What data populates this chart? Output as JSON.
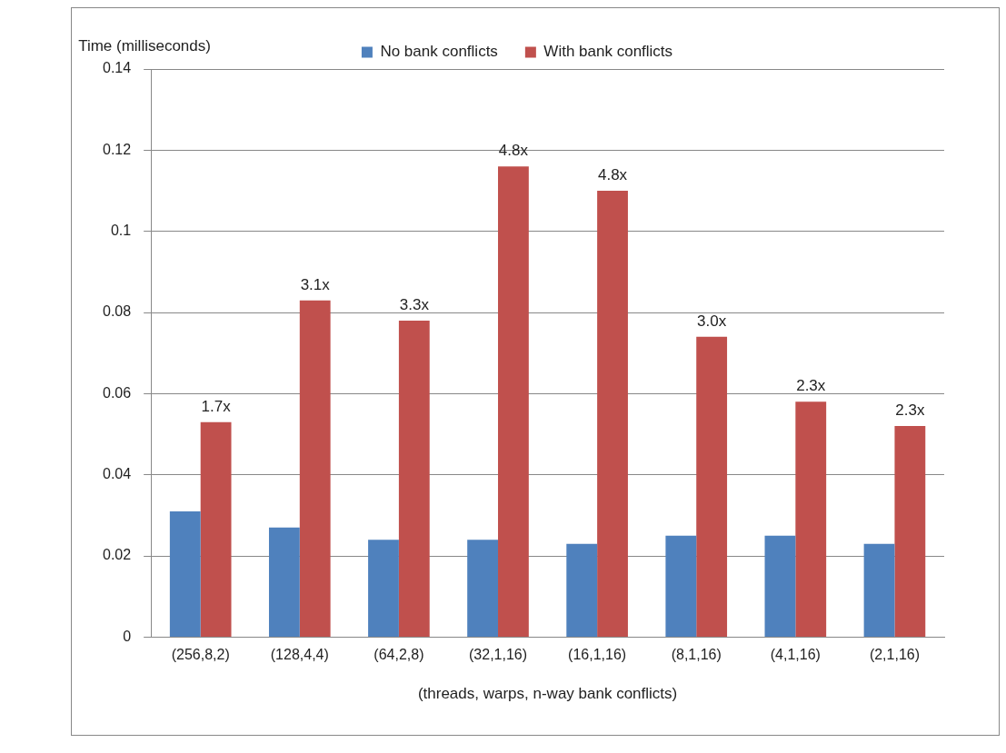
{
  "chart_data": {
    "type": "bar",
    "categories": [
      "(256,8,2)",
      "(128,4,4)",
      "(64,2,8)",
      "(32,1,16)",
      "(16,1,16)",
      "(8,1,16)",
      "(4,1,16)",
      "(2,1,16)"
    ],
    "series": [
      {
        "name": "No bank conflicts",
        "color": "#4f81bd",
        "values": [
          0.031,
          0.027,
          0.024,
          0.024,
          0.023,
          0.025,
          0.025,
          0.023
        ]
      },
      {
        "name": "With bank conflicts",
        "color": "#c0504d",
        "values": [
          0.053,
          0.083,
          0.078,
          0.116,
          0.11,
          0.074,
          0.058,
          0.052
        ]
      }
    ],
    "xlabel": "(threads, warps, n-way bank conflicts)",
    "ylabel": "Time (milliseconds)",
    "ylim": [
      0,
      0.14
    ],
    "yticks": [
      0,
      0.02,
      0.04,
      0.06,
      0.08,
      0.1,
      0.12,
      0.14
    ],
    "grid": "y",
    "legend": "top",
    "annotations": [
      {
        "text": "1.7x",
        "x": "(256,8,2)",
        "y": 0.053
      },
      {
        "text": "3.1x",
        "x": "(128,4,4)",
        "y": 0.083
      },
      {
        "text": "3.3x",
        "x": "(64,2,8)",
        "y": 0.078
      },
      {
        "text": "4.8x",
        "x": "(32,1,16)",
        "y": 0.116
      },
      {
        "text": "4.8x",
        "x": "(16,1,16)",
        "y": 0.11
      },
      {
        "text": "3.0x",
        "x": "(8,1,16)",
        "y": 0.074
      },
      {
        "text": "2.3x",
        "x": "(4,1,16)",
        "y": 0.058
      },
      {
        "text": "2.3x",
        "x": "(2,1,16)",
        "y": 0.052
      }
    ]
  }
}
